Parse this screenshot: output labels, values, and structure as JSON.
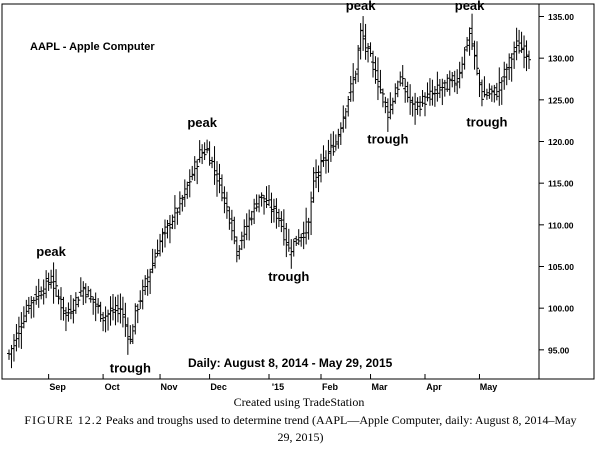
{
  "chart_data": {
    "type": "ohlc-bar",
    "title": "AAPL - Apple Computer",
    "subtitle": "Daily: August 8, 2014 - May 29, 2015",
    "y_ticks": [
      "95.00",
      "100.00",
      "105.00",
      "110.00",
      "115.00",
      "120.00",
      "125.00",
      "130.00",
      "135.00"
    ],
    "ylim": [
      91.5,
      136.5
    ],
    "x_ticks": [
      "Sep",
      "Oct",
      "Nov",
      "Dec",
      "'15",
      "Feb",
      "Mar",
      "Apr",
      "May"
    ],
    "anchors": [
      {
        "label": "Aug 8",
        "value": 94.5
      },
      {
        "label": "Aug 20",
        "value": 100.5
      },
      {
        "label": "Sep 2",
        "value": 103.5
      },
      {
        "label": "Sep 10",
        "value": 99.0
      },
      {
        "label": "Sep 19",
        "value": 102.5
      },
      {
        "label": "Oct 1",
        "value": 99.0
      },
      {
        "label": "Oct 10",
        "value": 100.0
      },
      {
        "label": "Oct 16",
        "value": 96.0
      },
      {
        "label": "Oct 20",
        "value": 99.5
      },
      {
        "label": "Nov 3",
        "value": 108.0
      },
      {
        "label": "Nov 14",
        "value": 113.0
      },
      {
        "label": "Nov 25",
        "value": 118.5
      },
      {
        "label": "Nov 28",
        "value": 119.0
      },
      {
        "label": "Dec 5",
        "value": 115.0
      },
      {
        "label": "Dec 12",
        "value": 110.0
      },
      {
        "label": "Dec 16",
        "value": 107.0
      },
      {
        "label": "Dec 29",
        "value": 113.5
      },
      {
        "label": "Jan 8",
        "value": 111.0
      },
      {
        "label": "Jan 14",
        "value": 107.0
      },
      {
        "label": "Jan 26",
        "value": 110.0
      },
      {
        "label": "Jan 28",
        "value": 115.5
      },
      {
        "label": "Feb 10",
        "value": 120.0
      },
      {
        "label": "Feb 20",
        "value": 128.5
      },
      {
        "label": "Feb 24",
        "value": 133.0
      },
      {
        "label": "Mar 3",
        "value": 129.0
      },
      {
        "label": "Mar 11",
        "value": 123.5
      },
      {
        "label": "Mar 18",
        "value": 127.5
      },
      {
        "label": "Mar 25",
        "value": 124.0
      },
      {
        "label": "Apr 10",
        "value": 126.5
      },
      {
        "label": "Apr 20",
        "value": 127.5
      },
      {
        "label": "Apr 27",
        "value": 133.0
      },
      {
        "label": "May 4",
        "value": 125.5
      },
      {
        "label": "May 12",
        "value": 126.0
      },
      {
        "label": "May 22",
        "value": 131.5
      },
      {
        "label": "May 29",
        "value": 130.5
      }
    ],
    "annotations": [
      {
        "text": "peak",
        "near": "Sep 2"
      },
      {
        "text": "trough",
        "near": "Oct 16"
      },
      {
        "text": "peak",
        "near": "Nov 26"
      },
      {
        "text": "trough",
        "near": "Jan 14"
      },
      {
        "text": "peak",
        "near": "Feb 24"
      },
      {
        "text": "trough",
        "near": "Mar 11"
      },
      {
        "text": "peak",
        "near": "Apr 27"
      },
      {
        "text": "trough",
        "near": "May 6"
      }
    ]
  },
  "credit": "Created using TradeStation",
  "caption": {
    "figure_label": "FIGURE 12.2",
    "text": "Peaks and troughs used to determine trend (AAPL—Apple Computer, daily: August 8, 2014–May 29, 2015)"
  }
}
